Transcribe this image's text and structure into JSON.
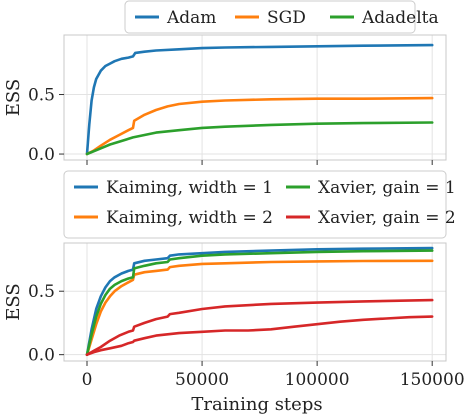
{
  "chart_data": [
    {
      "type": "line",
      "ylabel": "ESS",
      "xlabel": "",
      "xlim": [
        -10000,
        156000
      ],
      "ylim": [
        -0.05,
        1.0
      ],
      "xticks": [
        0,
        50000,
        100000,
        150000
      ],
      "yticks": [
        0.0,
        0.5
      ],
      "ytick_labels": [
        "0.0",
        "0.5"
      ],
      "grid": true,
      "legend_placement": "top-center",
      "series": [
        {
          "name": "Adam",
          "color": "#1f77b4",
          "x": [
            0,
            1000,
            2000,
            3000,
            4000,
            6000,
            8000,
            10000,
            12000,
            15000,
            18000,
            20000,
            21000,
            25000,
            30000,
            40000,
            50000,
            60000,
            80000,
            100000,
            120000,
            150000
          ],
          "y": [
            0.0,
            0.25,
            0.45,
            0.56,
            0.63,
            0.7,
            0.74,
            0.76,
            0.78,
            0.8,
            0.81,
            0.82,
            0.85,
            0.86,
            0.87,
            0.88,
            0.89,
            0.895,
            0.9,
            0.905,
            0.91,
            0.915
          ]
        },
        {
          "name": "SGD",
          "color": "#ff7f0e",
          "x": [
            0,
            3000,
            6000,
            10000,
            14000,
            18000,
            20000,
            20500,
            25000,
            30000,
            35000,
            40000,
            50000,
            60000,
            80000,
            100000,
            120000,
            150000
          ],
          "y": [
            0.0,
            0.03,
            0.07,
            0.12,
            0.16,
            0.2,
            0.22,
            0.28,
            0.33,
            0.37,
            0.4,
            0.42,
            0.44,
            0.45,
            0.46,
            0.465,
            0.465,
            0.47
          ]
        },
        {
          "name": "Adadelta",
          "color": "#2ca02c",
          "x": [
            0,
            5000,
            10000,
            15000,
            20000,
            25000,
            30000,
            40000,
            50000,
            60000,
            80000,
            100000,
            120000,
            150000
          ],
          "y": [
            0.0,
            0.04,
            0.08,
            0.11,
            0.14,
            0.16,
            0.18,
            0.2,
            0.22,
            0.23,
            0.245,
            0.255,
            0.26,
            0.265
          ]
        }
      ]
    },
    {
      "type": "line",
      "ylabel": "ESS",
      "xlabel": "Training steps",
      "xlim": [
        -10000,
        156000
      ],
      "ylim": [
        -0.05,
        0.88
      ],
      "xticks": [
        0,
        50000,
        100000,
        150000
      ],
      "yticks": [
        0.0,
        0.5
      ],
      "ytick_labels": [
        "0.0",
        "0.5"
      ],
      "grid": true,
      "legend_placement": "above",
      "series": [
        {
          "name": "Kaiming, width = 1",
          "color": "#1f77b4",
          "x": [
            0,
            1000,
            2000,
            4000,
            6000,
            8000,
            10000,
            12000,
            15000,
            18000,
            20000,
            20500,
            25000,
            30000,
            35000,
            36000,
            40000,
            50000,
            60000,
            80000,
            100000,
            120000,
            150000
          ],
          "y": [
            0.0,
            0.1,
            0.2,
            0.36,
            0.46,
            0.53,
            0.58,
            0.61,
            0.64,
            0.66,
            0.67,
            0.72,
            0.74,
            0.75,
            0.76,
            0.78,
            0.79,
            0.8,
            0.81,
            0.82,
            0.83,
            0.835,
            0.84
          ]
        },
        {
          "name": "Kaiming, width = 2",
          "color": "#ff7f0e",
          "x": [
            0,
            2000,
            4000,
            6000,
            8000,
            10000,
            12000,
            15000,
            18000,
            20000,
            20500,
            25000,
            30000,
            35000,
            36000,
            40000,
            50000,
            60000,
            80000,
            100000,
            120000,
            150000
          ],
          "y": [
            0.0,
            0.12,
            0.24,
            0.34,
            0.41,
            0.46,
            0.5,
            0.54,
            0.57,
            0.59,
            0.63,
            0.65,
            0.66,
            0.67,
            0.69,
            0.7,
            0.715,
            0.72,
            0.73,
            0.735,
            0.738,
            0.74
          ]
        },
        {
          "name": "Xavier, gain = 1",
          "color": "#2ca02c",
          "x": [
            0,
            1000,
            2000,
            4000,
            6000,
            8000,
            10000,
            12000,
            15000,
            18000,
            20000,
            20500,
            25000,
            30000,
            35000,
            36000,
            40000,
            50000,
            60000,
            80000,
            100000,
            120000,
            150000
          ],
          "y": [
            0.0,
            0.08,
            0.16,
            0.3,
            0.4,
            0.47,
            0.52,
            0.55,
            0.58,
            0.6,
            0.61,
            0.68,
            0.7,
            0.72,
            0.73,
            0.75,
            0.76,
            0.78,
            0.79,
            0.8,
            0.81,
            0.815,
            0.82
          ]
        },
        {
          "name": "Xavier, gain = 2",
          "color": "#d62728",
          "x": [
            0,
            3000,
            6000,
            10000,
            14000,
            18000,
            20000,
            20500,
            25000,
            30000,
            35000,
            36000,
            40000,
            50000,
            60000,
            80000,
            100000,
            120000,
            150000
          ],
          "y": [
            0.0,
            0.03,
            0.06,
            0.11,
            0.15,
            0.18,
            0.19,
            0.22,
            0.25,
            0.28,
            0.3,
            0.32,
            0.33,
            0.36,
            0.38,
            0.4,
            0.41,
            0.42,
            0.43
          ]
        },
        {
          "name": "",
          "color": "#d62728",
          "x": [
            0,
            3000,
            6000,
            10000,
            15000,
            18000,
            20000,
            20500,
            25000,
            30000,
            40000,
            50000,
            60000,
            70000,
            80000,
            90000,
            100000,
            110000,
            120000,
            130000,
            140000,
            150000
          ],
          "y": [
            0.0,
            0.02,
            0.035,
            0.05,
            0.07,
            0.09,
            0.1,
            0.11,
            0.13,
            0.15,
            0.17,
            0.18,
            0.19,
            0.19,
            0.2,
            0.22,
            0.24,
            0.26,
            0.275,
            0.285,
            0.295,
            0.3
          ]
        }
      ]
    }
  ]
}
